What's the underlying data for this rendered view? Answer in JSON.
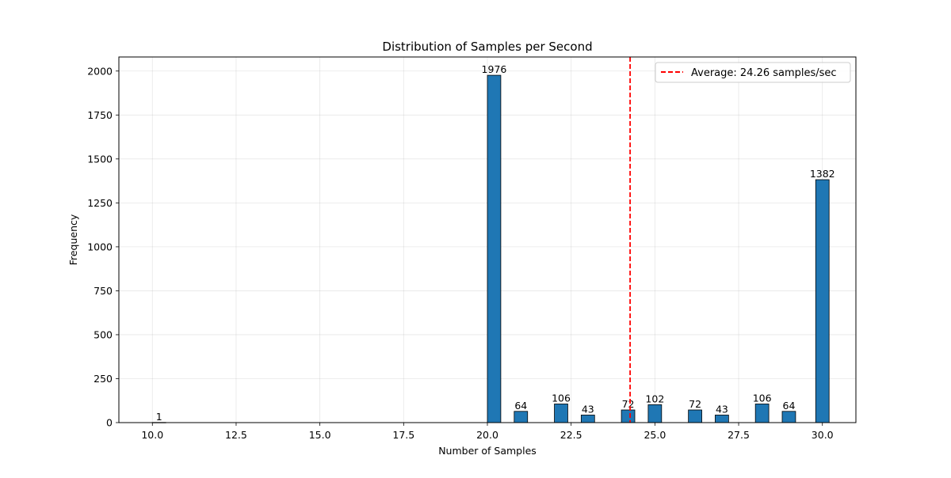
{
  "chart_data": {
    "type": "bar",
    "title": "Distribution of Samples per Second",
    "xlabel": "Number of Samples",
    "ylabel": "Frequency",
    "xlim": [
      9.0,
      31.0
    ],
    "ylim": [
      0,
      2080
    ],
    "x_ticks": [
      "10.0",
      "12.5",
      "15.0",
      "17.5",
      "20.0",
      "22.5",
      "25.0",
      "27.5",
      "30.0"
    ],
    "y_ticks": [
      "0",
      "250",
      "500",
      "750",
      "1000",
      "1250",
      "1500",
      "1750",
      "2000"
    ],
    "grid": true,
    "bar_color": "#1f77b4",
    "bar_edge_color": "#000000",
    "bar_width": 0.4,
    "bars": [
      {
        "x": 10.2,
        "value": 1,
        "label": "1"
      },
      {
        "x": 20.2,
        "value": 1976,
        "label": "1976"
      },
      {
        "x": 21.0,
        "value": 64,
        "label": "64"
      },
      {
        "x": 22.2,
        "value": 106,
        "label": "106"
      },
      {
        "x": 23.0,
        "value": 43,
        "label": "43"
      },
      {
        "x": 24.2,
        "value": 72,
        "label": "72"
      },
      {
        "x": 25.0,
        "value": 102,
        "label": "102"
      },
      {
        "x": 26.2,
        "value": 72,
        "label": "72"
      },
      {
        "x": 27.0,
        "value": 43,
        "label": "43"
      },
      {
        "x": 28.2,
        "value": 106,
        "label": "106"
      },
      {
        "x": 29.0,
        "value": 64,
        "label": "64"
      },
      {
        "x": 30.0,
        "value": 1382,
        "label": "1382"
      }
    ],
    "reference_line": {
      "x": 24.26,
      "color": "#ff0000",
      "style": "dashed",
      "label": "Average: 24.26 samples/sec"
    },
    "legend": {
      "placement": "top-right",
      "entries": [
        "Average: 24.26 samples/sec"
      ]
    }
  }
}
